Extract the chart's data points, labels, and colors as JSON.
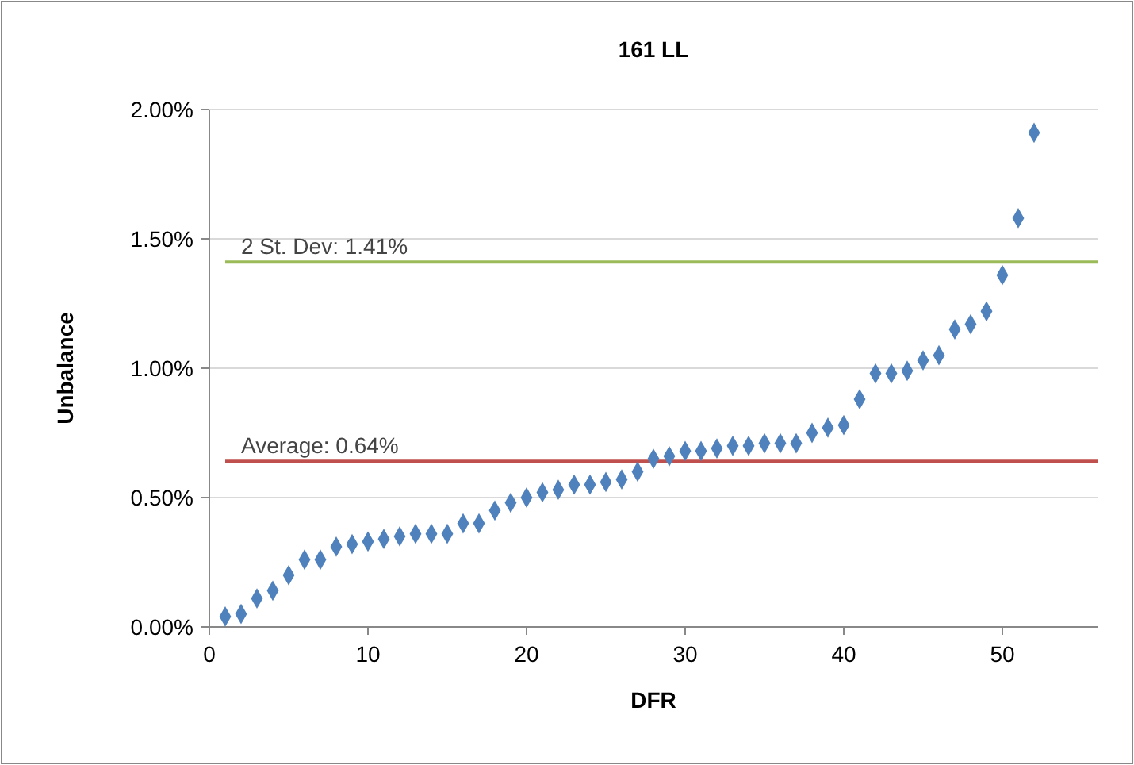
{
  "chart_data": {
    "type": "scatter",
    "title": "161 LL",
    "xlabel": "DFR",
    "ylabel": "Unbalance",
    "marker": "diamond",
    "grid": "y",
    "x": [
      1,
      2,
      3,
      4,
      5,
      6,
      7,
      8,
      9,
      10,
      11,
      12,
      13,
      14,
      15,
      16,
      17,
      18,
      19,
      20,
      21,
      22,
      23,
      24,
      25,
      26,
      27,
      28,
      29,
      30,
      31,
      32,
      33,
      34,
      35,
      36,
      37,
      38,
      39,
      40,
      41,
      42,
      43,
      44,
      45,
      46,
      47,
      48,
      49,
      50,
      51,
      52
    ],
    "series": [
      {
        "color": "#4f81bd",
        "values": [
          0.04,
          0.05,
          0.11,
          0.14,
          0.2,
          0.26,
          0.26,
          0.31,
          0.32,
          0.33,
          0.34,
          0.35,
          0.36,
          0.36,
          0.36,
          0.4,
          0.4,
          0.45,
          0.48,
          0.5,
          0.52,
          0.53,
          0.55,
          0.55,
          0.56,
          0.57,
          0.6,
          0.65,
          0.66,
          0.68,
          0.68,
          0.69,
          0.7,
          0.7,
          0.71,
          0.71,
          0.71,
          0.75,
          0.77,
          0.78,
          0.88,
          0.98,
          0.98,
          0.99,
          1.03,
          1.05,
          1.15,
          1.17,
          1.22,
          1.36,
          1.58,
          1.91
        ]
      }
    ],
    "xlim": [
      0,
      56
    ],
    "xticks": [
      0,
      10,
      20,
      30,
      40,
      50
    ],
    "ylim": [
      0,
      2
    ],
    "yticks": [
      {
        "value": 0,
        "label": "0.00%"
      },
      {
        "value": 0.5,
        "label": "0.50%"
      },
      {
        "value": 1,
        "label": "1.00%"
      },
      {
        "value": 1.5,
        "label": "1.50%"
      },
      {
        "value": 2,
        "label": "2.00%"
      }
    ],
    "ref_lines": [
      {
        "axis": "y",
        "value": 1.41,
        "label": "2 St. Dev: 1.41%",
        "color": "#9bbb59"
      },
      {
        "axis": "y",
        "value": 0.64,
        "label": "Average: 0.64%",
        "color": "#c0504d"
      }
    ]
  }
}
